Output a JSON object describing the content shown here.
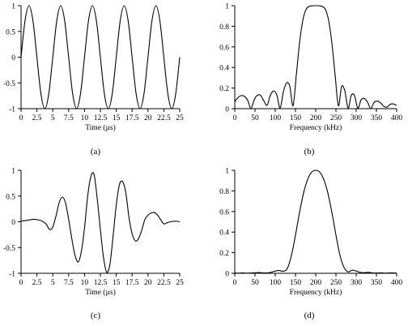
{
  "chart_data": [
    {
      "panel_label": "(a)",
      "type": "line",
      "xlabel": "Time (µs)",
      "ylabel": "",
      "xlim": [
        0,
        25
      ],
      "ylim": [
        -1,
        1
      ],
      "xticks": [
        "0",
        "2.5",
        "5",
        "7.5",
        "10",
        "12.5",
        "15",
        "17.5",
        "20",
        "22.5",
        "25"
      ],
      "yticks": [
        "-1",
        "-0.5",
        "0",
        "0.5",
        "1"
      ],
      "grid": false,
      "series": [
        {
          "x": [
            0,
            0.625,
            1.25,
            1.875,
            2.5,
            3.125,
            3.75,
            4.375,
            5,
            5.625,
            6.25,
            6.875,
            7.5,
            8.125,
            8.75,
            9.375,
            10,
            10.625,
            11.25,
            11.875,
            12.5,
            13.125,
            13.75,
            14.375,
            15,
            15.625,
            16.25,
            16.875,
            17.5,
            18.125,
            18.75,
            19.375,
            20,
            20.625,
            21.25,
            21.875,
            22.5,
            23.125,
            23.75,
            24.375,
            25
          ],
          "y": [
            0,
            0.707,
            1,
            0.707,
            0,
            -0.707,
            -1,
            -0.707,
            0,
            0.707,
            1,
            0.707,
            0,
            -0.707,
            -1,
            -0.707,
            0,
            0.707,
            1,
            0.707,
            0,
            -0.707,
            -1,
            -0.707,
            0,
            0.707,
            1,
            0.707,
            0,
            -0.707,
            -1,
            -0.707,
            0,
            0.707,
            1,
            0.707,
            0,
            -0.707,
            -1,
            -0.707,
            0
          ]
        }
      ]
    },
    {
      "panel_label": "(b)",
      "type": "line",
      "xlabel": "Frequency (kHz)",
      "ylabel": "",
      "xlim": [
        0,
        400
      ],
      "ylim": [
        0,
        1
      ],
      "xticks": [
        "0",
        "50",
        "100",
        "150",
        "200",
        "250",
        "300",
        "350",
        "400"
      ],
      "yticks": [
        "0",
        "0.2",
        "0.4",
        "0.6",
        "0.8",
        "1"
      ],
      "grid": false,
      "series": [
        {
          "x": [
            0,
            8,
            16,
            24,
            32,
            40,
            48,
            56,
            64,
            72,
            80,
            88,
            96,
            104,
            112,
            120,
            128,
            136,
            144,
            152,
            160,
            168,
            176,
            184,
            192,
            200,
            208,
            216,
            224,
            232,
            240,
            248,
            256,
            264,
            272,
            280,
            288,
            296,
            304,
            312,
            320,
            328,
            336,
            344,
            352,
            360,
            368,
            376,
            384,
            392,
            400
          ],
          "y": [
            0.067,
            0.107,
            0.127,
            0.12,
            0.081,
            0.001,
            0.087,
            0.13,
            0.128,
            0.074,
            0.034,
            0.13,
            0.172,
            0.133,
            0.005,
            0.161,
            0.25,
            0.217,
            0.029,
            0.324,
            0.636,
            0.855,
            0.963,
            0.993,
            0.999,
            1,
            0.999,
            0.993,
            0.963,
            0.855,
            0.636,
            0.324,
            0.029,
            0.216,
            0.171,
            0.004,
            0.132,
            0.125,
            0.004,
            0.084,
            0.1,
            0.063,
            0.001,
            0.06,
            0.073,
            0.057,
            0.023,
            0.014,
            0.042,
            0.046,
            0.031
          ]
        }
      ]
    },
    {
      "panel_label": "(c)",
      "type": "line",
      "xlabel": "Time (µs)",
      "ylabel": "",
      "xlim": [
        0,
        25
      ],
      "ylim": [
        -1,
        1
      ],
      "xticks": [
        "0",
        "2.5",
        "5",
        "7.5",
        "10",
        "12.5",
        "15",
        "17.5",
        "20",
        "22.5",
        "25"
      ],
      "yticks": [
        "-1",
        "-0.5",
        "0",
        "0.5",
        "1"
      ],
      "grid": false,
      "series": [
        {
          "x": [
            0,
            0.5,
            1,
            1.5,
            2,
            2.5,
            3,
            3.5,
            4,
            4.5,
            5,
            5.5,
            6,
            6.5,
            7,
            7.5,
            8,
            8.5,
            9,
            9.5,
            10,
            10.5,
            11,
            11.5,
            12,
            12.5,
            13,
            13.5,
            14,
            14.5,
            15,
            15.5,
            16,
            16.5,
            17,
            17.5,
            18,
            18.5,
            19,
            19.5,
            20,
            20.5,
            21,
            21.5,
            22,
            22.5,
            23,
            23.5,
            24,
            24.5,
            25
          ],
          "y": [
            0.02,
            0.02,
            0.03,
            0.04,
            0.05,
            0.04,
            0.03,
            0,
            -0.05,
            -0.15,
            -0.1,
            0.11,
            0.37,
            0.48,
            0.37,
            0.05,
            -0.33,
            -0.65,
            -0.78,
            -0.58,
            -0.12,
            0.5,
            0.88,
            0.92,
            0.45,
            -0.15,
            -0.7,
            -0.98,
            -0.83,
            -0.28,
            0.32,
            0.72,
            0.78,
            0.57,
            0.09,
            -0.23,
            -0.37,
            -0.33,
            -0.17,
            0.04,
            0.13,
            0.17,
            0.18,
            0.13,
            0.04,
            -0.04,
            -0.02,
            0,
            0.01,
            0.01,
            0
          ]
        }
      ]
    },
    {
      "panel_label": "(d)",
      "type": "line",
      "xlabel": "Frequency (kHz)",
      "ylabel": "",
      "xlim": [
        0,
        400
      ],
      "ylim": [
        0,
        1
      ],
      "xticks": [
        "0",
        "50",
        "100",
        "150",
        "200",
        "250",
        "300",
        "350",
        "400"
      ],
      "yticks": [
        "0",
        "0.2",
        "0.4",
        "0.6",
        "0.8",
        "1"
      ],
      "grid": false,
      "series": [
        {
          "x": [
            0,
            10,
            20,
            30,
            40,
            50,
            60,
            70,
            80,
            90,
            100,
            110,
            120,
            130,
            140,
            150,
            160,
            170,
            180,
            190,
            200,
            210,
            220,
            230,
            240,
            250,
            260,
            270,
            280,
            290,
            300,
            310,
            320,
            330,
            340,
            350,
            360,
            370,
            380,
            390,
            400
          ],
          "y": [
            0.003,
            0.002,
            0.004,
            0.002,
            0.003,
            0.005,
            0.007,
            0.004,
            0.004,
            0.01,
            0.022,
            0.027,
            0.02,
            0.048,
            0.174,
            0.37,
            0.59,
            0.78,
            0.91,
            0.982,
            1,
            0.982,
            0.91,
            0.78,
            0.59,
            0.37,
            0.174,
            0.056,
            0.014,
            0.03,
            0.022,
            0.009,
            0.006,
            0.009,
            0.004,
            0.003,
            0.005,
            0.002,
            0.003,
            0.004,
            0.002
          ]
        }
      ]
    }
  ]
}
